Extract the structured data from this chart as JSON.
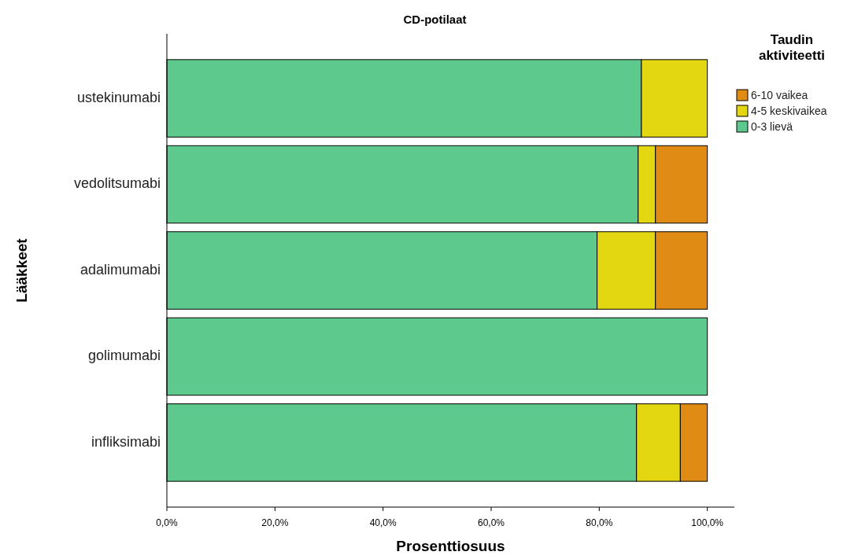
{
  "chart_data": {
    "type": "bar",
    "orientation": "horizontal",
    "stacked": true,
    "title": "CD-potilaat",
    "xlabel": "Prosenttiosuus",
    "ylabel": "Lääkkeet",
    "legend_title": "Taudin aktiviteetti",
    "legend": "right",
    "categories": [
      "ustekinumabi",
      "vedolitsumabi",
      "adalimumabi",
      "golimumabi",
      "infliksimabi"
    ],
    "series": [
      {
        "name": "0-3 lievä",
        "color": "#5ec98c",
        "values": [
          87.8,
          87.2,
          79.6,
          100,
          86.9
        ]
      },
      {
        "name": "4-5 keskivaikea",
        "color": "#e3d712",
        "values": [
          12.2,
          3.2,
          10.8,
          0,
          8.1
        ]
      },
      {
        "name": "6-10 vaikea",
        "color": "#e08b13",
        "values": [
          0,
          9.6,
          9.6,
          0,
          5.0
        ]
      }
    ],
    "xlim": [
      0,
      105
    ],
    "xticks": [
      {
        "value": 0,
        "label": "0,0%"
      },
      {
        "value": 20,
        "label": "20,0%"
      },
      {
        "value": 40,
        "label": "40,0%"
      },
      {
        "value": 60,
        "label": "60,0%"
      },
      {
        "value": 80,
        "label": "80,0%"
      },
      {
        "value": 100,
        "label": "100,0%"
      }
    ]
  }
}
